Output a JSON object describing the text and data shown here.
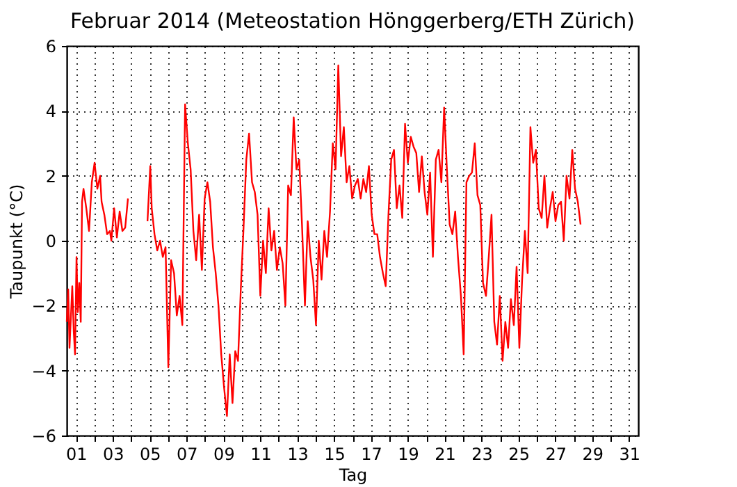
{
  "chart_data": {
    "type": "line",
    "title": "Februar 2014  (Meteostation Hönggerberg/ETH Zürich)",
    "xlabel": "Tag",
    "ylabel": "Taupunkt (°C)",
    "x": [
      0.5,
      0.58,
      0.65,
      0.8,
      0.88,
      0.95,
      1.03,
      1.1,
      1.18,
      1.26,
      1.33,
      1.41,
      1.56,
      1.71,
      1.86,
      2.01,
      2.16,
      2.31,
      2.39,
      2.54,
      2.69,
      2.84,
      2.92,
      3.07,
      3.22,
      3.37,
      3.52,
      3.67,
      3.82,
      4.35,
      4.88,
      5.03,
      5.11,
      5.26,
      5.41,
      5.56,
      5.71,
      5.86,
      6.01,
      6.16,
      6.32,
      6.47,
      6.62,
      6.77,
      6.92,
      7.07,
      7.22,
      7.37,
      7.52,
      7.68,
      7.83,
      7.98,
      8.13,
      8.28,
      8.43,
      8.58,
      8.73,
      8.88,
      9.03,
      9.19,
      9.34,
      9.49,
      9.64,
      9.79,
      9.94,
      10.09,
      10.24,
      10.39,
      10.55,
      10.7,
      10.85,
      11.0,
      11.15,
      11.3,
      11.45,
      11.6,
      11.75,
      11.9,
      12.06,
      12.21,
      12.36,
      12.51,
      12.66,
      12.81,
      12.96,
      13.11,
      13.26,
      13.42,
      13.57,
      13.72,
      13.87,
      14.02,
      14.17,
      14.32,
      14.47,
      14.62,
      14.78,
      14.93,
      15.08,
      15.23,
      15.38,
      15.53,
      15.68,
      15.83,
      15.98,
      16.13,
      16.29,
      16.44,
      16.59,
      16.74,
      16.89,
      17.04,
      17.19,
      17.34,
      17.49,
      17.65,
      17.8,
      17.95,
      18.1,
      18.25,
      18.4,
      18.55,
      18.7,
      18.85,
      19.0,
      19.16,
      19.31,
      19.46,
      19.61,
      19.76,
      19.91,
      20.06,
      20.21,
      20.36,
      20.52,
      20.67,
      20.82,
      20.97,
      21.12,
      21.27,
      21.42,
      21.57,
      21.72,
      21.88,
      22.03,
      22.18,
      22.33,
      22.48,
      22.63,
      22.78,
      22.93,
      23.08,
      23.24,
      23.39,
      23.54,
      23.69,
      23.84,
      23.99,
      24.14,
      24.29,
      24.44,
      24.59,
      24.75,
      24.9,
      25.05,
      25.2,
      25.35,
      25.5,
      25.65,
      25.8,
      25.95,
      26.1,
      26.26,
      26.41,
      26.56,
      26.71,
      26.86,
      27.01,
      27.16,
      27.31,
      27.46,
      27.61,
      27.77,
      27.92,
      28.07,
      28.22,
      28.37
    ],
    "series": [
      {
        "color": "#ff0000",
        "values": [
          -2.5,
          -1.5,
          -3.3,
          -1.4,
          -2.8,
          -3.5,
          -0.5,
          -2.2,
          -1.3,
          -2.5,
          1.2,
          1.6,
          1.0,
          0.3,
          1.8,
          2.4,
          1.6,
          2.0,
          1.2,
          0.8,
          0.2,
          0.3,
          0.0,
          1.0,
          0.1,
          0.9,
          0.3,
          0.4,
          1.3,
          null,
          0.6,
          2.3,
          1.0,
          0.2,
          -0.3,
          0.0,
          -0.5,
          -0.2,
          -3.9,
          -0.6,
          -1.0,
          -2.3,
          -1.7,
          -2.6,
          4.2,
          3.0,
          2.2,
          0.3,
          -0.6,
          0.8,
          -0.9,
          1.3,
          1.8,
          1.2,
          -0.2,
          -1.0,
          -2.0,
          -3.5,
          -4.5,
          -5.4,
          -3.5,
          -5.0,
          -3.4,
          -3.7,
          -1.5,
          0.4,
          2.5,
          3.3,
          1.8,
          1.5,
          0.8,
          -1.7,
          0.0,
          -1.0,
          1.0,
          -0.3,
          0.3,
          -0.9,
          -0.2,
          -0.7,
          -2.0,
          1.7,
          1.4,
          3.8,
          2.2,
          2.5,
          0.5,
          -2.0,
          0.6,
          -0.5,
          -1.2,
          -2.6,
          0.0,
          -1.2,
          0.3,
          -0.5,
          0.9,
          3.0,
          2.2,
          5.4,
          2.6,
          3.5,
          1.8,
          2.3,
          1.3,
          1.7,
          1.9,
          1.3,
          1.9,
          1.5,
          2.3,
          0.8,
          0.2,
          0.2,
          -0.5,
          -1.0,
          -1.4,
          0.8,
          2.5,
          2.8,
          1.0,
          1.7,
          0.7,
          3.6,
          2.4,
          3.2,
          2.9,
          2.7,
          1.5,
          2.6,
          1.5,
          0.8,
          2.1,
          -0.5,
          2.5,
          2.8,
          1.8,
          4.1,
          2.2,
          0.5,
          0.2,
          0.9,
          -0.5,
          -1.7,
          -3.5,
          1.8,
          2.0,
          2.1,
          3.0,
          1.4,
          1.1,
          -1.3,
          -1.7,
          -0.5,
          0.8,
          -2.5,
          -3.2,
          -1.7,
          -3.7,
          -2.5,
          -3.3,
          -1.8,
          -2.6,
          -0.8,
          -3.3,
          -1.2,
          0.3,
          -1.0,
          3.5,
          2.4,
          2.8,
          1.0,
          0.7,
          2.0,
          0.4,
          1.0,
          1.5,
          0.6,
          1.1,
          1.2,
          0.0,
          2.0,
          1.3,
          2.8,
          1.6,
          1.2,
          0.5
        ]
      }
    ],
    "xlim": [
      0.5,
      31.5
    ],
    "xticks": [
      {
        "value": 1,
        "label": "01"
      },
      {
        "value": 2,
        "label": null
      },
      {
        "value": 3,
        "label": "03"
      },
      {
        "value": 4,
        "label": null
      },
      {
        "value": 5,
        "label": "05"
      },
      {
        "value": 6,
        "label": null
      },
      {
        "value": 7,
        "label": "07"
      },
      {
        "value": 8,
        "label": null
      },
      {
        "value": 9,
        "label": "09"
      },
      {
        "value": 10,
        "label": null
      },
      {
        "value": 11,
        "label": "11"
      },
      {
        "value": 12,
        "label": null
      },
      {
        "value": 13,
        "label": "13"
      },
      {
        "value": 14,
        "label": null
      },
      {
        "value": 15,
        "label": "15"
      },
      {
        "value": 16,
        "label": null
      },
      {
        "value": 17,
        "label": "17"
      },
      {
        "value": 18,
        "label": null
      },
      {
        "value": 19,
        "label": "19"
      },
      {
        "value": 20,
        "label": null
      },
      {
        "value": 21,
        "label": "21"
      },
      {
        "value": 22,
        "label": null
      },
      {
        "value": 23,
        "label": "23"
      },
      {
        "value": 24,
        "label": null
      },
      {
        "value": 25,
        "label": "25"
      },
      {
        "value": 26,
        "label": null
      },
      {
        "value": 27,
        "label": "27"
      },
      {
        "value": 28,
        "label": null
      },
      {
        "value": 29,
        "label": "29"
      },
      {
        "value": 30,
        "label": null
      },
      {
        "value": 31,
        "label": "31"
      }
    ],
    "ylim": [
      -6,
      6
    ],
    "yticks": [
      -6,
      -4,
      -2,
      0,
      2,
      4,
      6
    ],
    "grid": true,
    "line_style": "solid",
    "marker": "none"
  }
}
